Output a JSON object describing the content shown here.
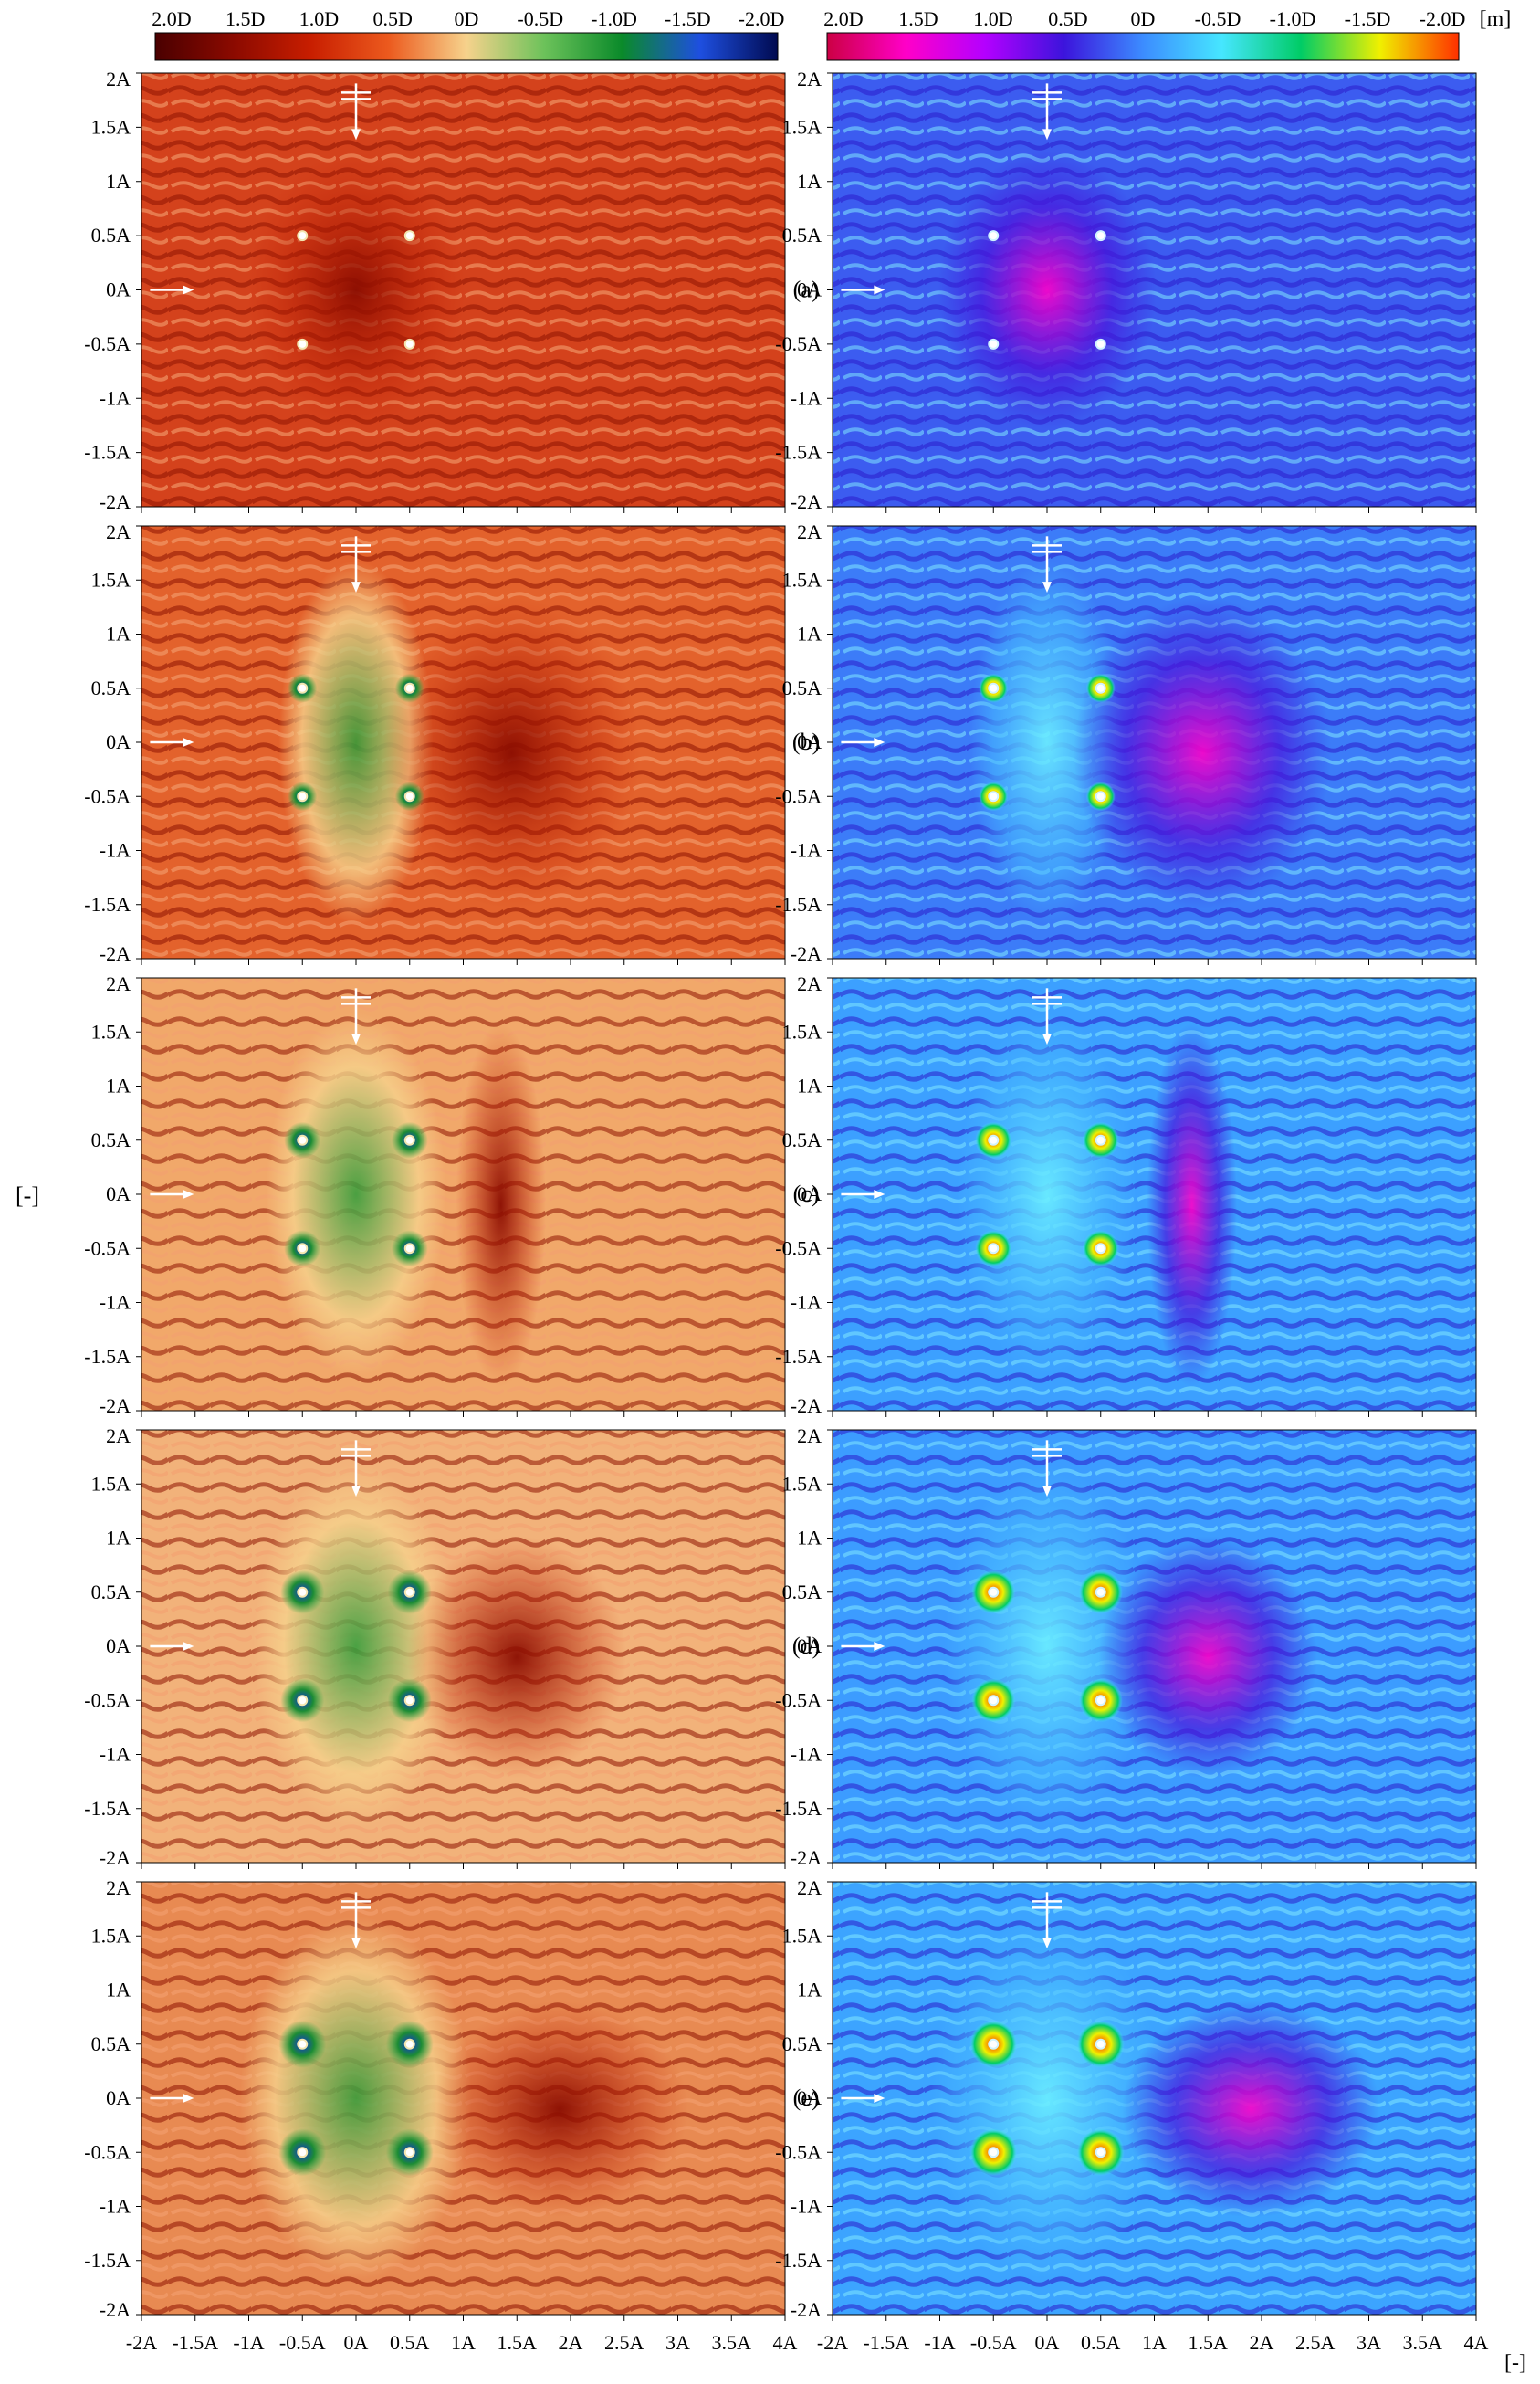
{
  "figure": {
    "colorbars": {
      "left": {
        "ticks": [
          "2.0D",
          "1.5D",
          "1.0D",
          "0.5D",
          "0D",
          "-0.5D",
          "-1.0D",
          "-1.5D",
          "-2.0D"
        ],
        "colors": [
          "#4a0000",
          "#8b0a00",
          "#c81e00",
          "#ec5a1e",
          "#f6d28c",
          "#6cc25a",
          "#0a8a2a",
          "#1e4fe0",
          "#000a50"
        ]
      },
      "right": {
        "ticks": [
          "2.0D",
          "1.5D",
          "1.0D",
          "0.5D",
          "0D",
          "-0.5D",
          "-1.0D",
          "-1.5D",
          "-2.0D"
        ],
        "unit": "[m]",
        "colors": [
          "#cc0044",
          "#ff00c8",
          "#b400ff",
          "#3c14dc",
          "#3c8cff",
          "#46e6ff",
          "#00cc66",
          "#f0f000",
          "#ff3000"
        ]
      }
    },
    "y_ticks": [
      "2A",
      "1.5A",
      "1A",
      "0.5A",
      "0A",
      "-0.5A",
      "-1A",
      "-1.5A",
      "-2A"
    ],
    "x_ticks": [
      "-2A",
      "-1.5A",
      "-1A",
      "-0.5A",
      "0A",
      "0.5A",
      "1A",
      "1.5A",
      "2A",
      "2.5A",
      "3A",
      "3.5A",
      "4A"
    ],
    "y_unit": "[-]",
    "x_unit": "[-]",
    "panel_labels": [
      "(a)",
      "(b)",
      "(c)",
      "(d)",
      "(e)"
    ],
    "pile_positions": [
      [
        -0.5,
        0.5
      ],
      [
        0.5,
        0.5
      ],
      [
        -0.5,
        -0.5
      ],
      [
        0.5,
        -0.5
      ]
    ]
  }
}
